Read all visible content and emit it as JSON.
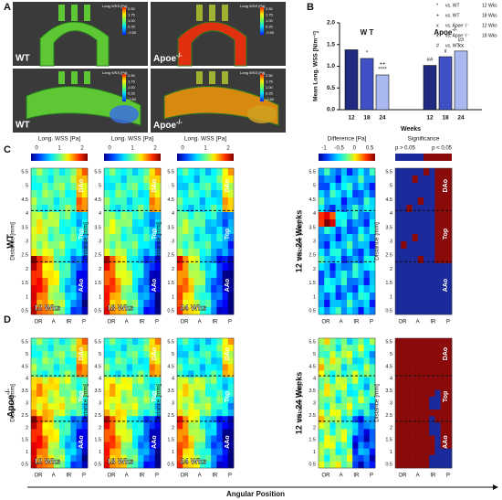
{
  "panels": {
    "a": "A",
    "b": "B",
    "c": "C",
    "d": "D"
  },
  "panel_a": {
    "wt": "WT",
    "apoe": {
      "text": "Apoe",
      "sup": "-/-"
    },
    "colorbar_label": "Long WSS [Pa]",
    "colorbar_ticks": [
      "2.50",
      "1.75",
      "1.00",
      "0.25",
      "-0.50"
    ]
  },
  "chart_data": {
    "type": "bar",
    "ylabel": "Mean Long. WSS [N/m⁻²]",
    "xlabel": "Weeks",
    "groups": [
      {
        "text": "W T",
        "sup": ""
      },
      {
        "text": "Apoe",
        "sup": "-/-"
      }
    ],
    "categories": [
      "12",
      "18",
      "24",
      "12",
      "18",
      "24"
    ],
    "values": [
      1.38,
      1.18,
      0.8,
      1.02,
      1.22,
      1.35
    ],
    "colors": [
      "#1f2a80",
      "#3f51c4",
      "#a9b8ee",
      "#1f2a80",
      "#3f51c4",
      "#a9b8ee"
    ],
    "ylim": [
      0,
      2.0
    ],
    "yticks": [
      {
        "value": 0,
        "label": "0.0"
      },
      {
        "value": 0.5,
        "label": "0.5"
      },
      {
        "value": 1,
        "label": "1.0"
      },
      {
        "value": 1.5,
        "label": "1.5"
      },
      {
        "value": 2,
        "label": "2.0"
      }
    ],
    "annotations": [
      {
        "index": 1,
        "lines": [
          "*"
        ]
      },
      {
        "index": 2,
        "lines": [
          "++",
          "****"
        ]
      },
      {
        "index": 3,
        "lines": [
          "##"
        ]
      },
      {
        "index": 4,
        "lines": [
          "x"
        ]
      },
      {
        "index": 5,
        "lines": [
          "##",
          "xx"
        ]
      }
    ],
    "legend": [
      {
        "symbol": "*",
        "text": "vs. WT",
        "detail": "12 Wks"
      },
      {
        "symbol": "+",
        "text": "vs. WT",
        "detail": "18 Wks"
      },
      {
        "symbol": "x",
        "text": "vs. Apoe⁻/⁻",
        "detail": "12 Wks"
      },
      {
        "symbol": "x",
        "text": "vs. Apoe⁻/⁻",
        "detail": "18 Wks"
      },
      {
        "symbol": "#",
        "text": "vs. WT",
        "detail": ""
      }
    ]
  },
  "maps": {
    "wss_title": "Long. WSS [Pa]",
    "wss_ticks": [
      "0",
      "1",
      "2"
    ],
    "diff_title": "Difference [Pa]",
    "diff_ticks": [
      "-1",
      "-0.5",
      "0",
      "0.5"
    ],
    "sig_title": "Significance",
    "sig_ticks": [
      "p > 0.05",
      "p < 0.05"
    ],
    "distance_label": "Distance [mm]",
    "distance_ticks": [
      "5.5",
      "5",
      "4.5",
      "4",
      "3.5",
      "3",
      "2.5",
      "2",
      "1.5",
      "1",
      "0.5"
    ],
    "angle_ticks": [
      "OR",
      "A",
      "IR",
      "P"
    ],
    "regions": [
      "DAo",
      "Top",
      "AAo"
    ],
    "weeks": [
      "12 Wks",
      "18 Wks",
      "24 Wks"
    ],
    "comparison": "12 vs. 24 Weeks",
    "row_c": "WT",
    "row_d": {
      "text": "Apoe",
      "sup": "-/-"
    },
    "xaxis": "Angular Position"
  }
}
